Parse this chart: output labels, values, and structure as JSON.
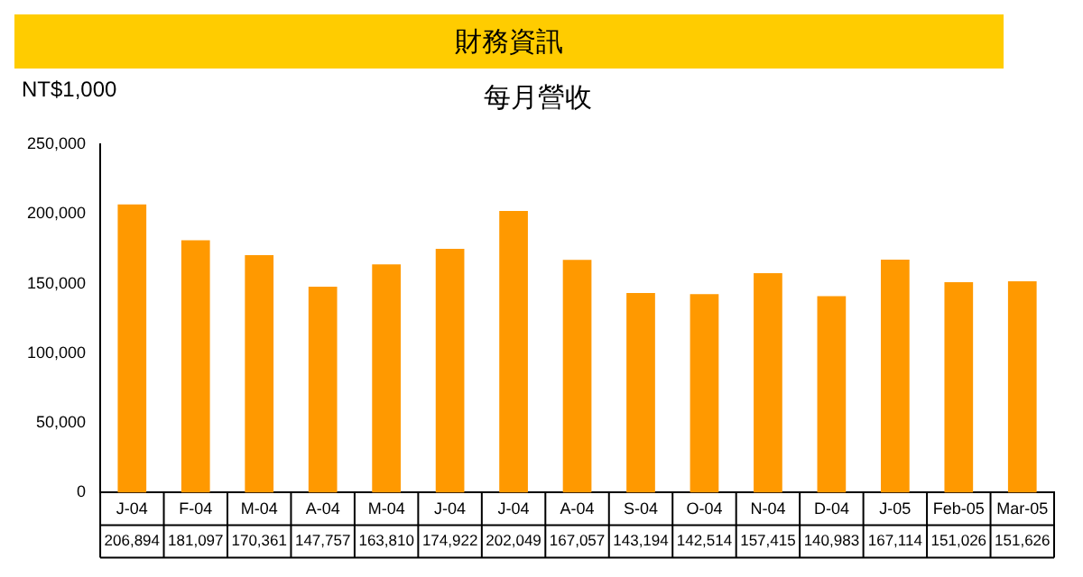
{
  "chart_data": {
    "type": "bar",
    "title": "財務資訊",
    "subtitle": "每月營收",
    "ylabel": "NT$1,000",
    "categories": [
      "J-04",
      "F-04",
      "M-04",
      "A-04",
      "M-04",
      "J-04",
      "J-04",
      "A-04",
      "S-04",
      "O-04",
      "N-04",
      "D-04",
      "J-05",
      "Feb-05",
      "Mar-05"
    ],
    "values": [
      206894,
      181097,
      170361,
      147757,
      163810,
      174922,
      202049,
      167057,
      143194,
      142514,
      157415,
      140983,
      167114,
      151026,
      151626
    ],
    "value_labels": [
      "206,894",
      "181,097",
      "170,361",
      "147,757",
      "163,810",
      "174,922",
      "202,049",
      "167,057",
      "143,194",
      "142,514",
      "157,415",
      "140,983",
      "167,114",
      "151,026",
      "151,626"
    ],
    "color": "#ff9900",
    "ylim": [
      0,
      250000
    ],
    "yticks": [
      0,
      {
        "value": 50000,
        "label": "50,000"
      },
      {
        "value": 100000,
        "label": "100,000"
      },
      {
        "value": 150000,
        "label": "150,000"
      },
      {
        "value": 200000,
        "label": "200,000"
      },
      {
        "value": 250000,
        "label": "250,000"
      }
    ],
    "grid": false,
    "legend": false
  }
}
